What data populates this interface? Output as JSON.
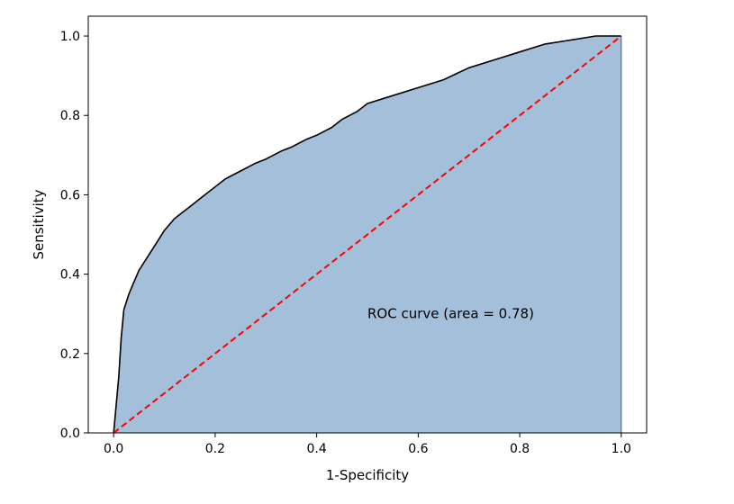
{
  "chart_data": {
    "type": "area",
    "title": "",
    "xlabel": "1-Specificity",
    "ylabel": "Sensitivity",
    "xlim": [
      -0.05,
      1.05
    ],
    "ylim": [
      0.0,
      1.05
    ],
    "x_ticks": [
      "0.0",
      "0.2",
      "0.4",
      "0.6",
      "0.8",
      "1.0"
    ],
    "y_ticks": [
      "0.0",
      "0.2",
      "0.4",
      "0.6",
      "0.8",
      "1.0"
    ],
    "grid": false,
    "legend": "none",
    "series": [
      {
        "kind": "roc",
        "color": "#000000",
        "fill_color": "#a3bfd9",
        "x": [
          0.0,
          0.005,
          0.01,
          0.015,
          0.02,
          0.03,
          0.04,
          0.05,
          0.06,
          0.08,
          0.1,
          0.12,
          0.15,
          0.18,
          0.2,
          0.22,
          0.25,
          0.28,
          0.3,
          0.33,
          0.35,
          0.38,
          0.4,
          0.43,
          0.45,
          0.48,
          0.5,
          0.55,
          0.6,
          0.65,
          0.7,
          0.75,
          0.8,
          0.85,
          0.9,
          0.95,
          1.0
        ],
        "y": [
          0.0,
          0.07,
          0.14,
          0.24,
          0.31,
          0.35,
          0.38,
          0.41,
          0.43,
          0.47,
          0.51,
          0.54,
          0.57,
          0.6,
          0.62,
          0.64,
          0.66,
          0.68,
          0.69,
          0.71,
          0.72,
          0.74,
          0.75,
          0.77,
          0.79,
          0.81,
          0.83,
          0.85,
          0.87,
          0.89,
          0.92,
          0.94,
          0.96,
          0.98,
          0.99,
          1.0,
          1.0
        ]
      },
      {
        "kind": "chance-line",
        "color": "#ff0000",
        "style": "dashed",
        "x": [
          0.0,
          1.0
        ],
        "y": [
          0.0,
          1.0
        ]
      }
    ],
    "annotations": [
      {
        "text": "ROC curve (area = 0.78)",
        "x": 0.5,
        "y": 0.3
      }
    ]
  }
}
